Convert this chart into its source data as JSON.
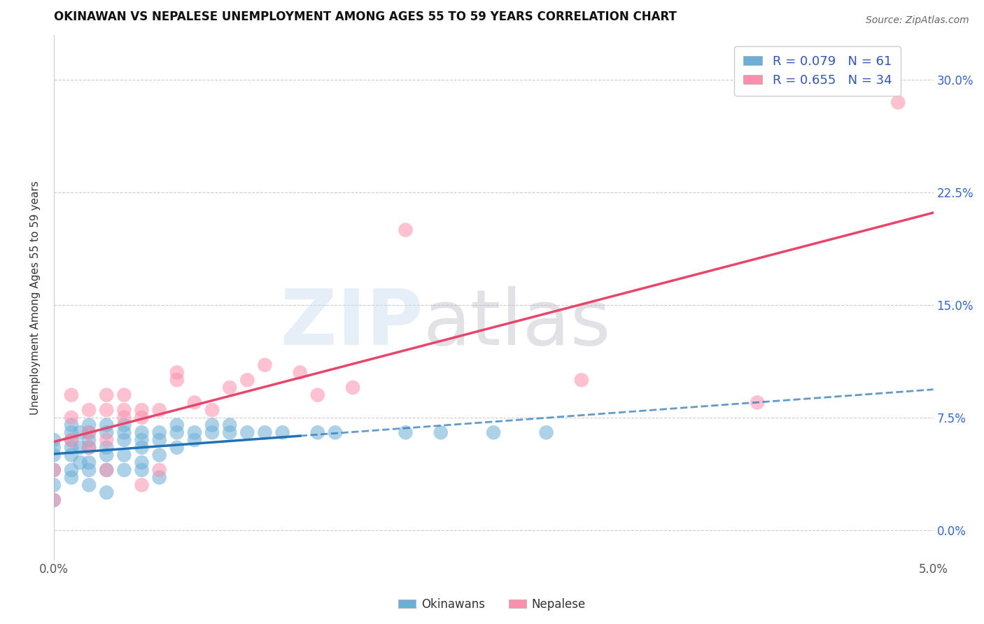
{
  "title": "OKINAWAN VS NEPALESE UNEMPLOYMENT AMONG AGES 55 TO 59 YEARS CORRELATION CHART",
  "source": "Source: ZipAtlas.com",
  "ylabel": "Unemployment Among Ages 55 to 59 years",
  "xlim": [
    0.0,
    0.05
  ],
  "ylim": [
    -0.02,
    0.33
  ],
  "yticks": [
    0.0,
    0.075,
    0.15,
    0.225,
    0.3
  ],
  "ytick_labels": [
    "0.0%",
    "7.5%",
    "15.0%",
    "22.5%",
    "30.0%"
  ],
  "xticks": [
    0.0,
    0.01,
    0.02,
    0.03,
    0.04,
    0.05
  ],
  "xtick_labels": [
    "0.0%",
    "",
    "",
    "",
    "",
    "5.0%"
  ],
  "okinawan_color": "#6baed6",
  "nepalese_color": "#fc8fac",
  "okinawan_line_color": "#2171b5",
  "nepalese_line_color": "#e8456a",
  "okinawan_R": 0.079,
  "okinawan_N": 61,
  "nepalese_R": 0.655,
  "nepalese_N": 34,
  "legend_text_color": "#3355bb",
  "okinawan_x": [
    0.0,
    0.0,
    0.0,
    0.0,
    0.0,
    0.0,
    0.001,
    0.001,
    0.001,
    0.001,
    0.001,
    0.001,
    0.001,
    0.0015,
    0.0015,
    0.0015,
    0.002,
    0.002,
    0.002,
    0.002,
    0.002,
    0.002,
    0.002,
    0.003,
    0.003,
    0.003,
    0.003,
    0.003,
    0.003,
    0.004,
    0.004,
    0.004,
    0.004,
    0.004,
    0.005,
    0.005,
    0.005,
    0.005,
    0.005,
    0.006,
    0.006,
    0.006,
    0.006,
    0.007,
    0.007,
    0.007,
    0.008,
    0.008,
    0.009,
    0.009,
    0.01,
    0.01,
    0.011,
    0.012,
    0.013,
    0.015,
    0.016,
    0.02,
    0.022,
    0.025,
    0.028
  ],
  "okinawan_y": [
    0.04,
    0.05,
    0.06,
    0.02,
    0.03,
    0.055,
    0.04,
    0.055,
    0.065,
    0.035,
    0.05,
    0.06,
    0.07,
    0.045,
    0.055,
    0.065,
    0.03,
    0.045,
    0.055,
    0.065,
    0.04,
    0.06,
    0.07,
    0.04,
    0.055,
    0.065,
    0.025,
    0.05,
    0.07,
    0.05,
    0.06,
    0.065,
    0.07,
    0.04,
    0.045,
    0.055,
    0.065,
    0.04,
    0.06,
    0.05,
    0.06,
    0.065,
    0.035,
    0.055,
    0.065,
    0.07,
    0.06,
    0.065,
    0.065,
    0.07,
    0.065,
    0.07,
    0.065,
    0.065,
    0.065,
    0.065,
    0.065,
    0.065,
    0.065,
    0.065,
    0.065
  ],
  "nepalese_x": [
    0.0,
    0.0,
    0.001,
    0.001,
    0.001,
    0.002,
    0.002,
    0.002,
    0.003,
    0.003,
    0.003,
    0.003,
    0.004,
    0.004,
    0.004,
    0.005,
    0.005,
    0.005,
    0.006,
    0.006,
    0.007,
    0.007,
    0.008,
    0.009,
    0.01,
    0.011,
    0.012,
    0.014,
    0.015,
    0.017,
    0.02,
    0.03,
    0.04,
    0.048
  ],
  "nepalese_y": [
    0.04,
    0.02,
    0.075,
    0.09,
    0.06,
    0.065,
    0.08,
    0.055,
    0.08,
    0.06,
    0.09,
    0.04,
    0.09,
    0.075,
    0.08,
    0.03,
    0.075,
    0.08,
    0.04,
    0.08,
    0.1,
    0.105,
    0.085,
    0.08,
    0.095,
    0.1,
    0.11,
    0.105,
    0.09,
    0.095,
    0.2,
    0.1,
    0.085,
    0.285
  ]
}
